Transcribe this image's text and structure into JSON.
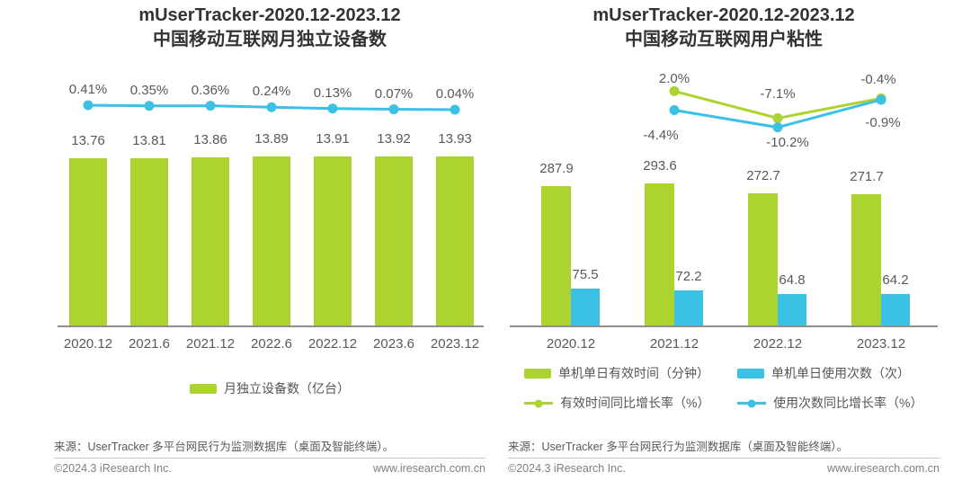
{
  "colors": {
    "green": "#acd32f",
    "blue": "#3bc0e6"
  },
  "chart_data": [
    {
      "type": "bar+line",
      "title": "mUserTracker-2020.12-2023.12",
      "subtitle": "中国移动互联网月独立设备数",
      "categories": [
        "2020.12",
        "2021.6",
        "2021.12",
        "2022.6",
        "2022.12",
        "2023.6",
        "2023.12"
      ],
      "series": [
        {
          "type": "bar",
          "name": "月独立设备数（亿台）",
          "color": "green",
          "values": [
            13.76,
            13.81,
            13.86,
            13.89,
            13.91,
            13.92,
            13.93
          ]
        },
        {
          "type": "line",
          "color": "blue",
          "values": [
            0.41,
            0.35,
            0.36,
            0.24,
            0.13,
            0.07,
            0.04
          ],
          "labels": [
            "0.41%",
            "0.35%",
            "0.36%",
            "0.24%",
            "0.13%",
            "0.07%",
            "0.04%"
          ]
        }
      ],
      "legend": [
        {
          "label": "月独立设备数（亿台）",
          "swatch": "bar",
          "color": "green"
        }
      ],
      "source": "来源：UserTracker 多平台网民行为监测数据库（桌面及智能终端）。",
      "footer_left": "©2024.3 iResearch Inc.",
      "footer_right": "www.iresearch.com.cn"
    },
    {
      "type": "bar+line",
      "title": "mUserTracker-2020.12-2023.12",
      "subtitle": "中国移动互联网用户粘性",
      "categories": [
        "2020.12",
        "2021.12",
        "2022.12",
        "2023.12"
      ],
      "series": [
        {
          "type": "bar",
          "name": "单机单日有效时间（分钟）",
          "color": "green",
          "values": [
            287.9,
            293.6,
            272.7,
            271.7
          ]
        },
        {
          "type": "bar",
          "name": "单机单日使用次数（次）",
          "color": "blue",
          "values": [
            75.5,
            72.2,
            64.8,
            64.2
          ]
        },
        {
          "type": "line",
          "name": "有效时间同比增长率（%）",
          "color": "green",
          "start_index": 1,
          "values": [
            2.0,
            -7.1,
            -0.4
          ],
          "labels": [
            "2.0%",
            "-7.1%",
            "-0.4%"
          ]
        },
        {
          "type": "line",
          "name": "使用次数同比增长率（%）",
          "color": "blue",
          "start_index": 1,
          "values": [
            -4.4,
            -10.2,
            -0.9
          ],
          "labels": [
            "-4.4%",
            "-10.2%",
            "-0.9%"
          ]
        }
      ],
      "legend": [
        {
          "label": "单机单日有效时间（分钟）",
          "swatch": "bar",
          "color": "green"
        },
        {
          "label": "单机单日使用次数（次）",
          "swatch": "bar",
          "color": "blue"
        },
        {
          "label": "有效时间同比增长率（%）",
          "swatch": "line",
          "color": "green"
        },
        {
          "label": "使用次数同比增长率（%）",
          "swatch": "line",
          "color": "blue"
        }
      ],
      "source": "来源：UserTracker 多平台网民行为监测数据库（桌面及智能终端）。",
      "footer_left": "©2024.3 iResearch Inc.",
      "footer_right": "www.iresearch.com.cn"
    }
  ]
}
